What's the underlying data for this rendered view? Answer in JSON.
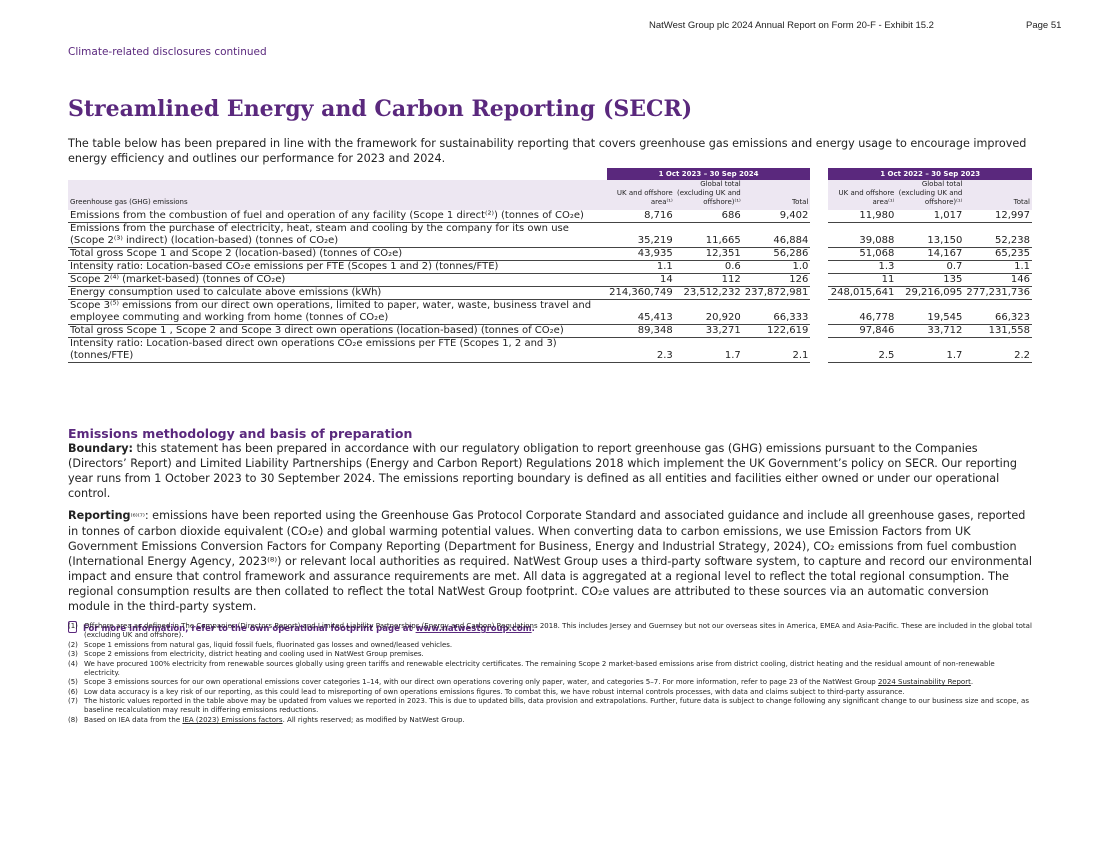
{
  "header": {
    "report": "NatWest Group plc 2024 Annual Report on Form 20-F - Exhibit 15.2",
    "page": "Page 51",
    "section": "Climate-related disclosures continued"
  },
  "title": "Streamlined Energy and Carbon Reporting (SECR)",
  "intro": "The table below has been prepared in line with the framework for sustainability reporting that covers greenhouse gas emissions and energy usage to encourage improved energy efficiency and outlines our performance for 2023 and 2024.",
  "table": {
    "periods": [
      "1 Oct 2023 – 30 Sep 2024",
      "1 Oct 2022 – 30 Sep 2023"
    ],
    "row_header": "Greenhouse gas (GHG) emissions",
    "columns": [
      "UK and offshore area⁽¹⁾",
      "Global total (excluding UK and offshore)⁽¹⁾",
      "Total",
      "UK and offshore area⁽¹⁾",
      "Global total (excluding UK and offshore)⁽¹⁾",
      "Total"
    ],
    "rows": [
      [
        "Emissions from the combustion of fuel and operation of any facility (Scope 1 direct⁽²⁾) (tonnes of CO₂e)",
        "8,716",
        "686",
        "9,402",
        "11,980",
        "1,017",
        "12,997"
      ],
      [
        "Emissions from the purchase of electricity, heat, steam and cooling by the company for its own use (Scope 2⁽³⁾ indirect) (location-based) (tonnes of CO₂e)",
        "35,219",
        "11,665",
        "46,884",
        "39,088",
        "13,150",
        "52,238"
      ],
      [
        "Total gross Scope 1 and Scope 2 (location-based) (tonnes of CO₂e)",
        "43,935",
        "12,351",
        "56,286",
        "51,068",
        "14,167",
        "65,235"
      ],
      [
        "Intensity ratio: Location-based CO₂e emissions per FTE (Scopes 1 and 2) (tonnes/FTE)",
        "1.1",
        "0.6",
        "1.0",
        "1.3",
        "0.7",
        "1.1"
      ],
      [
        "Scope 2⁽⁴⁾ (market-based) (tonnes of CO₂e)",
        "14",
        "112",
        "126",
        "11",
        "135",
        "146"
      ],
      [
        "Energy consumption used to calculate above emissions (kWh)",
        "214,360,749",
        "23,512,232",
        "237,872,981",
        "248,015,641",
        "29,216,095",
        "277,231,736"
      ],
      [
        "Scope 3⁽⁵⁾ emissions from our direct own operations, limited to paper, water, waste, business travel and employee commuting and working from home (tonnes of CO₂e)",
        "45,413",
        "20,920",
        "66,333",
        "46,778",
        "19,545",
        "66,323"
      ],
      [
        "Total gross Scope 1 , Scope 2 and Scope 3 direct own operations (location-based) (tonnes of CO₂e)",
        "89,348",
        "33,271",
        "122,619",
        "97,846",
        "33,712",
        "131,558"
      ],
      [
        "Intensity ratio: Location-based direct own operations CO₂e emissions per FTE (Scopes 1, 2 and 3) (tonnes/FTE)",
        "2.3",
        "1.7",
        "2.1",
        "2.5",
        "1.7",
        "2.2"
      ]
    ]
  },
  "methodology": {
    "heading": "Emissions methodology and basis of preparation",
    "boundary": {
      "label": "Boundary:",
      "text": " this statement has been prepared in accordance with our regulatory obligation to report greenhouse gas (GHG) emissions pursuant to the Companies (Directors’ Report) and Limited Liability Partnerships (Energy and Carbon Report) Regulations 2018 which implement the UK Government’s policy on SECR. Our reporting year runs from 1 October 2023 to 30 September 2024. The emissions reporting boundary is defined as all entities and facilities either owned or under our operational control."
    },
    "reporting": {
      "label": "Reporting",
      "sup": "⁽⁶⁾⁽⁷⁾",
      "text": ": emissions have been reported using the Greenhouse Gas Protocol Corporate Standard and associated guidance and include all greenhouse gases, reported in tonnes of carbon dioxide equivalent (CO₂e) and global warming potential values. When converting data to carbon emissions, we use Emission Factors from UK Government Emissions Conversion Factors for Company Reporting (Department for Business, Energy and Industrial Strategy, 2024), CO₂ emissions from fuel combustion (International Energy Agency, 2023⁽⁸⁾) or relevant local authorities as required. NatWest Group uses a third-party software system, to capture and record our environmental impact and ensure that control framework and assurance requirements are met. All data is aggregated at a regional level to reflect the total regional consumption. The regional consumption results are then collated to reflect the total NatWest Group footprint. CO₂e values are attributed to these sources via an automatic conversion module in the third-party system."
    },
    "more_info": {
      "text": "For more information, refer to the own operational footprint page at ",
      "link": "www.natwestgroup.com",
      "end": "."
    }
  },
  "footnotes": [
    {
      "num": "(1)",
      "text": "Offshore area as defined in The Companies (Directors Report) and Limited Liability Partnerships (Energy and Carbon) Regulations 2018. This includes Jersey and Guernsey but not our overseas sites in America, EMEA and Asia-Pacific. These are included in the global total (excluding UK and offshore)."
    },
    {
      "num": "(2)",
      "text": "Scope 1 emissions from natural gas, liquid fossil fuels, fluorinated gas losses and owned/leased vehicles."
    },
    {
      "num": "(3)",
      "text": "Scope 2 emissions from electricity, district heating and cooling used in NatWest Group premises."
    },
    {
      "num": "(4)",
      "text": "We have procured 100% electricity from renewable sources globally using green tariffs and renewable electricity certificates. The remaining Scope 2 market-based emissions arise from district cooling, district heating and the residual amount of non-renewable electricity."
    },
    {
      "num": "(5)",
      "text": "Scope 3 emissions sources for our own operational emissions cover categories 1–14, with our direct own operations covering only paper, water, and categories 5–7. For more information, refer to page 23 of the NatWest Group ",
      "link": "2024 Sustainability Report",
      "end": "."
    },
    {
      "num": "(6)",
      "text": "Low data accuracy is a key risk of our reporting, as this could lead to misreporting of own operations emissions figures. To combat this, we have robust internal controls processes, with data and claims subject to third-party assurance."
    },
    {
      "num": "(7)",
      "text": "The historic values reported in the table above may be updated from values we reported in 2023. This is due to updated bills, data provision and extrapolations. Further, future data is subject to change following any significant change to our business size and scope, as baseline recalculation may result in differing emissions reductions."
    },
    {
      "num": "(8)",
      "text": "Based on IEA data from the ",
      "link": "IEA (2023) Emissions factors",
      "end": ". All rights reserved; as modified by NatWest Group."
    }
  ]
}
